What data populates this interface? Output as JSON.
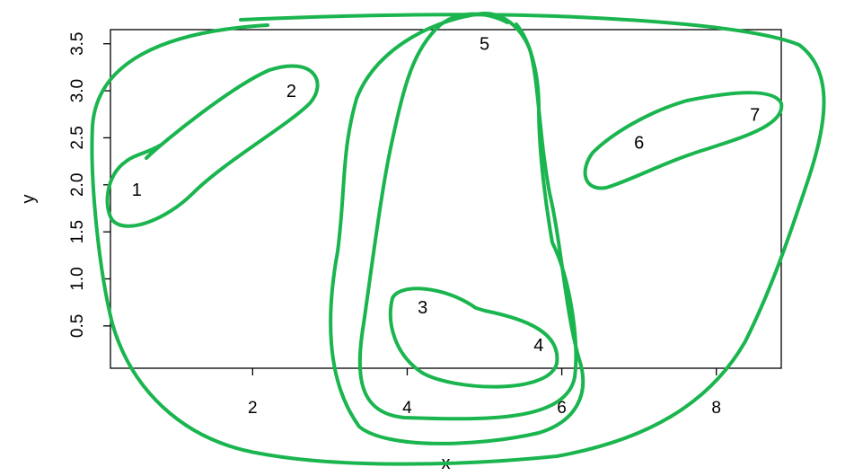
{
  "chart_data": {
    "type": "scatter",
    "xlabel": "x",
    "ylabel": "y",
    "xlim": [
      0.16,
      8.84
    ],
    "ylim": [
      0.05,
      3.65
    ],
    "xticks": [
      2,
      4,
      6,
      8
    ],
    "yticks": [
      0.5,
      1.0,
      1.5,
      2.0,
      2.5,
      3.0,
      3.5
    ],
    "xtick_labels": [
      "2",
      "4",
      "6",
      "8"
    ],
    "ytick_labels": [
      "0.5",
      "1.0",
      "1.5",
      "2.0",
      "2.5",
      "3.0",
      "3.5"
    ],
    "points": [
      {
        "label": "1",
        "x": 0.5,
        "y": 1.95
      },
      {
        "label": "2",
        "x": 2.5,
        "y": 3.0
      },
      {
        "label": "3",
        "x": 4.2,
        "y": 0.7
      },
      {
        "label": "4",
        "x": 5.7,
        "y": 0.3
      },
      {
        "label": "5",
        "x": 5.0,
        "y": 3.5
      },
      {
        "label": "6",
        "x": 7.0,
        "y": 2.45
      },
      {
        "label": "7",
        "x": 8.5,
        "y": 2.75
      }
    ],
    "clusters": [
      {
        "members": [
          "1",
          "2"
        ]
      },
      {
        "members": [
          "3",
          "4"
        ]
      },
      {
        "members": [
          "6",
          "7"
        ]
      },
      {
        "members": [
          "3",
          "4",
          "5"
        ]
      },
      {
        "members": [
          "3",
          "4",
          "5"
        ]
      },
      {
        "members": [
          "1",
          "2",
          "3",
          "4",
          "5",
          "6",
          "7"
        ]
      }
    ],
    "grid": false,
    "colors": {
      "cluster_outline": "#1ab54e",
      "axis": "#000000"
    }
  }
}
